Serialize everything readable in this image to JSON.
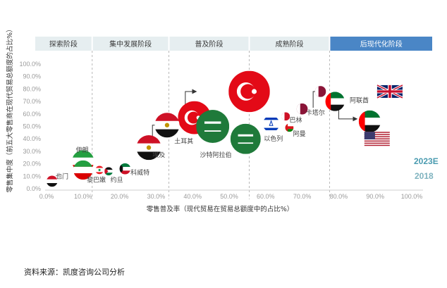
{
  "stages": [
    {
      "label": "探索阶段",
      "active": false
    },
    {
      "label": "集中发展阶段",
      "active": false
    },
    {
      "label": "普及阶段",
      "active": false
    },
    {
      "label": "成熟阶段",
      "active": false
    },
    {
      "label": "后现代化阶段",
      "active": true
    }
  ],
  "legend": {
    "y2023": "2023E",
    "y2018": "2018"
  },
  "source": "资料来源：凯度咨询公司分析",
  "colors": {
    "stage_bg": "#e6eef0",
    "stage_active": "#4a86c6",
    "legend_2023": "#4a9bb0",
    "legend_2018": "#7fb3bf",
    "divider": "#b8b8b8"
  },
  "chart_data": {
    "type": "bubble",
    "xlabel": "零售普及率（现代贸易在贸易总额度中的占比%）",
    "ylabel": "零售集中度（前五大零售商在现代贸易总额度的占比%）",
    "xlim": [
      0,
      100
    ],
    "ylim": [
      0,
      100
    ],
    "x_ticks": [
      "0.0%",
      "10.0%",
      "20.0%",
      "30.0%",
      "40.0%",
      "50.0%",
      "60.0%",
      "70.0%",
      "80.0%",
      "90.0%",
      "100.0%"
    ],
    "y_ticks": [
      "0.0%",
      "10.0%",
      "20.0%",
      "30.0%",
      "40.0%",
      "50.0%",
      "60.0%",
      "70.0%",
      "80.0%",
      "90.0%",
      "100.0%"
    ],
    "stage_boundaries": [
      12.5,
      33.5,
      55.5,
      77.5
    ],
    "points": [
      {
        "country": "也门",
        "flag": "yemen",
        "year": "2023E",
        "x": 1.5,
        "y": 6,
        "size": 3
      },
      {
        "country": "伊朗",
        "flag": "iran",
        "year": "2023E",
        "x": 10,
        "y": 22,
        "size": 7
      },
      {
        "country": "伊朗",
        "flag": "iran",
        "year": "2018",
        "x": 10,
        "y": 15,
        "size": 6
      },
      {
        "country": "黎巴嫩",
        "flag": "lebanon",
        "year": "2023E",
        "x": 14.5,
        "y": 15,
        "size": 2
      },
      {
        "country": "约旦",
        "flag": "jordan",
        "year": "2023E",
        "x": 17,
        "y": 14,
        "size": 2
      },
      {
        "country": "科威特",
        "flag": "kuwait",
        "year": "2023E",
        "x": 21.5,
        "y": 16,
        "size": 3
      },
      {
        "country": "埃及",
        "flag": "egypt",
        "year": "2023E",
        "x": 28,
        "y": 33,
        "size": 8
      },
      {
        "country": "埃及",
        "flag": "egypt",
        "year": "2018",
        "x": 33,
        "y": 51,
        "size": 8
      },
      {
        "country": "土耳其",
        "flag": "turkey",
        "year": "2023E",
        "x": 40.5,
        "y": 57,
        "size": 11
      },
      {
        "country": "土耳其",
        "flag": "turkey",
        "year": "2018",
        "x": 55.5,
        "y": 78,
        "size": 14
      },
      {
        "country": "沙特阿拉伯",
        "flag": "saudi",
        "year": "2023E",
        "x": 45.5,
        "y": 50,
        "size": 11
      },
      {
        "country": "沙特阿拉伯",
        "flag": "saudi",
        "year": "2018",
        "x": 54.5,
        "y": 40,
        "size": 10
      },
      {
        "country": "以色列",
        "flag": "israel",
        "year": "2023E",
        "x": 61.5,
        "y": 52,
        "size": 5
      },
      {
        "country": "巴林",
        "flag": "bahrain",
        "year": "2023E",
        "x": 65.5,
        "y": 58,
        "size": 2
      },
      {
        "country": "阿曼",
        "flag": "oman",
        "year": "2023E",
        "x": 66.5,
        "y": 49,
        "size": 2
      },
      {
        "country": "卡塔尔",
        "flag": "qatar",
        "year": "2023E",
        "x": 70,
        "y": 64,
        "size": 3
      },
      {
        "country": "卡塔尔",
        "flag": "qatar",
        "year": "2018",
        "x": 75,
        "y": 78,
        "size": 3
      },
      {
        "country": "阿联酋",
        "flag": "uae",
        "year": "2023E",
        "x": 79,
        "y": 70,
        "size": 6
      },
      {
        "country": "阿联酋",
        "flag": "uae",
        "year": "2018",
        "x": 88.5,
        "y": 54,
        "size": 7
      },
      {
        "country": "",
        "flag": "uk",
        "year": "",
        "x": 94,
        "y": 78,
        "size": 5
      },
      {
        "country": "",
        "flag": "usa",
        "year": "",
        "x": 90.5,
        "y": 40,
        "size": 5
      }
    ],
    "arrows": [
      {
        "from": [
          29,
          33
        ],
        "to": [
          32,
          51
        ]
      },
      {
        "from": [
          38,
          56
        ],
        "to": [
          41,
          78
        ]
      },
      {
        "from": [
          73,
          65
        ],
        "to": [
          75,
          78
        ]
      },
      {
        "from": [
          80,
          66
        ],
        "to": [
          85,
          56
        ]
      }
    ],
    "label_positions": [
      {
        "text": "也门",
        "x": 2.5,
        "y": 10
      },
      {
        "text": "伊朗",
        "x": 8,
        "y": 31
      },
      {
        "text": "黎巴嫩",
        "x": 11,
        "y": 7
      },
      {
        "text": "约旦",
        "x": 17.5,
        "y": 7
      },
      {
        "text": "科威特",
        "x": 23,
        "y": 13
      },
      {
        "text": "埃及",
        "x": 29,
        "y": 27
      },
      {
        "text": "土耳其",
        "x": 35,
        "y": 38
      },
      {
        "text": "沙特阿拉伯",
        "x": 42,
        "y": 27
      },
      {
        "text": "以色列",
        "x": 59.5,
        "y": 40
      },
      {
        "text": "巴林",
        "x": 66.5,
        "y": 55
      },
      {
        "text": "阿曼",
        "x": 67.5,
        "y": 44
      },
      {
        "text": "卡塔尔",
        "x": 71,
        "y": 61
      },
      {
        "text": "阿联酋",
        "x": 83,
        "y": 71
      }
    ]
  }
}
